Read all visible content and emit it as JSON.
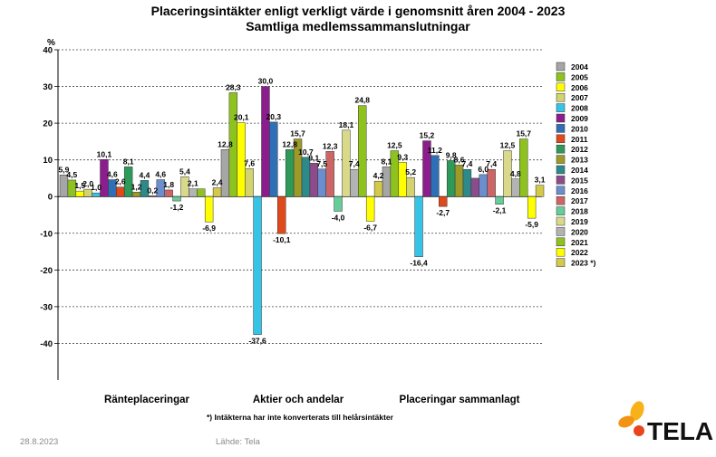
{
  "title_line1": "Placeringsintäkter enligt verkligt värde i genomsnitt åren 2004 - 2023",
  "title_line2": "Samtliga medlemssammanslutningar",
  "footnote": "*) Intäkterna har inte konverterats till helårsintäkter",
  "footer": {
    "date": "28.8.2023",
    "source": "Lähde: Tela"
  },
  "logo": {
    "text": "TELA",
    "colors": [
      "#e8461c",
      "#f39314",
      "#f7b21a"
    ]
  },
  "chart_data": {
    "type": "bar",
    "title": "Placeringsintäkter enligt verkligt värde i genomsnitt åren 2004 - 2023",
    "subtitle": "Samtliga medlemssammanslutningar",
    "ylabel": "%",
    "ylim": [
      -50,
      40
    ],
    "yticks": [
      40,
      30,
      20,
      10,
      0,
      -10,
      -20,
      -30,
      -40
    ],
    "ytick_labels": [
      "40",
      "30",
      "20",
      "10",
      "0",
      "-10",
      "-20",
      "-30",
      "-40"
    ],
    "grid": true,
    "legend_position": "right",
    "categories": [
      "Ränteplaceringar",
      "Aktier och andelar",
      "Placeringar sammanlagt"
    ],
    "series": [
      {
        "name": "2004",
        "color": "#a6a6a6",
        "values": [
          5.9,
          12.8,
          8.1
        ]
      },
      {
        "name": "2005",
        "color": "#8ec31f",
        "values": [
          4.5,
          28.3,
          12.5
        ]
      },
      {
        "name": "2006",
        "color": "#ffff00",
        "values": [
          1.5,
          20.1,
          9.3
        ]
      },
      {
        "name": "2007",
        "color": "#d3d36f",
        "values": [
          2.0,
          7.6,
          5.2
        ]
      },
      {
        "name": "2008",
        "color": "#36c4e6",
        "values": [
          1.0,
          -37.6,
          -16.4
        ]
      },
      {
        "name": "2009",
        "color": "#8b1e8c",
        "values": [
          10.1,
          30.0,
          15.2
        ]
      },
      {
        "name": "2010",
        "color": "#2f6fb5",
        "values": [
          4.6,
          20.3,
          11.2
        ]
      },
      {
        "name": "2011",
        "color": "#e0491b",
        "values": [
          2.6,
          -10.1,
          -2.7
        ]
      },
      {
        "name": "2012",
        "color": "#2e9a5a",
        "values": [
          8.1,
          12.8,
          9.8
        ]
      },
      {
        "name": "2013",
        "color": "#9c9a2a",
        "values": [
          1.2,
          15.7,
          8.6
        ]
      },
      {
        "name": "2014",
        "color": "#2c8a8a",
        "values": [
          4.4,
          10.7,
          7.4
        ]
      },
      {
        "name": "2015",
        "color": "#8c4c8c",
        "values": [
          0.2,
          9.1,
          5.0
        ]
      },
      {
        "name": "2016",
        "color": "#6b8ecf",
        "values": [
          4.6,
          7.5,
          6.0
        ]
      },
      {
        "name": "2017",
        "color": "#cc6666",
        "values": [
          1.8,
          12.3,
          7.4
        ]
      },
      {
        "name": "2018",
        "color": "#66cc99",
        "values": [
          -1.2,
          -4.0,
          -2.1
        ]
      },
      {
        "name": "2019",
        "color": "#d9d98a",
        "values": [
          5.4,
          18.1,
          12.5
        ]
      },
      {
        "name": "2020",
        "color": "#b3b3b3",
        "values": [
          2.1,
          7.4,
          4.8
        ]
      },
      {
        "name": "2021",
        "color": "#8ec31f",
        "values": [
          2.1,
          24.8,
          15.7
        ]
      },
      {
        "name": "2022",
        "color": "#ffff00",
        "values": [
          -6.9,
          -6.7,
          -5.9
        ]
      },
      {
        "name": "2023 *)",
        "color": "#d3c94a",
        "values": [
          2.4,
          4.2,
          3.1
        ]
      }
    ],
    "data_labels": [
      [
        "5,9",
        "4,5",
        "1,5",
        "2,0",
        "1,0",
        "10,1",
        "4,6",
        "2,6",
        "8,1",
        "1,2",
        "4,4",
        "0,2",
        "4,6",
        "1,8",
        "-1,2",
        "5,4",
        "2,1",
        "",
        "-6,9",
        "2,4"
      ],
      [
        "12,8",
        "28,3",
        "20,1",
        "7,6",
        "-37,6",
        "30,0",
        "20,3",
        "-10,1",
        "12,8",
        "15,7",
        "10,7",
        "9,1",
        "7,5",
        "12,3",
        "-4,0",
        "18,1",
        "7,4",
        "24,8",
        "-6,7",
        "4,2"
      ],
      [
        "8,1",
        "12,5",
        "9,3",
        "5,2",
        "-16,4",
        "15,2",
        "11,2",
        "-2,7",
        "9,8",
        "8,6",
        "7,4",
        "",
        "6,0",
        "7,4",
        "-2,1",
        "12,5",
        "4,8",
        "15,7",
        "-5,9",
        "3,1"
      ]
    ]
  }
}
